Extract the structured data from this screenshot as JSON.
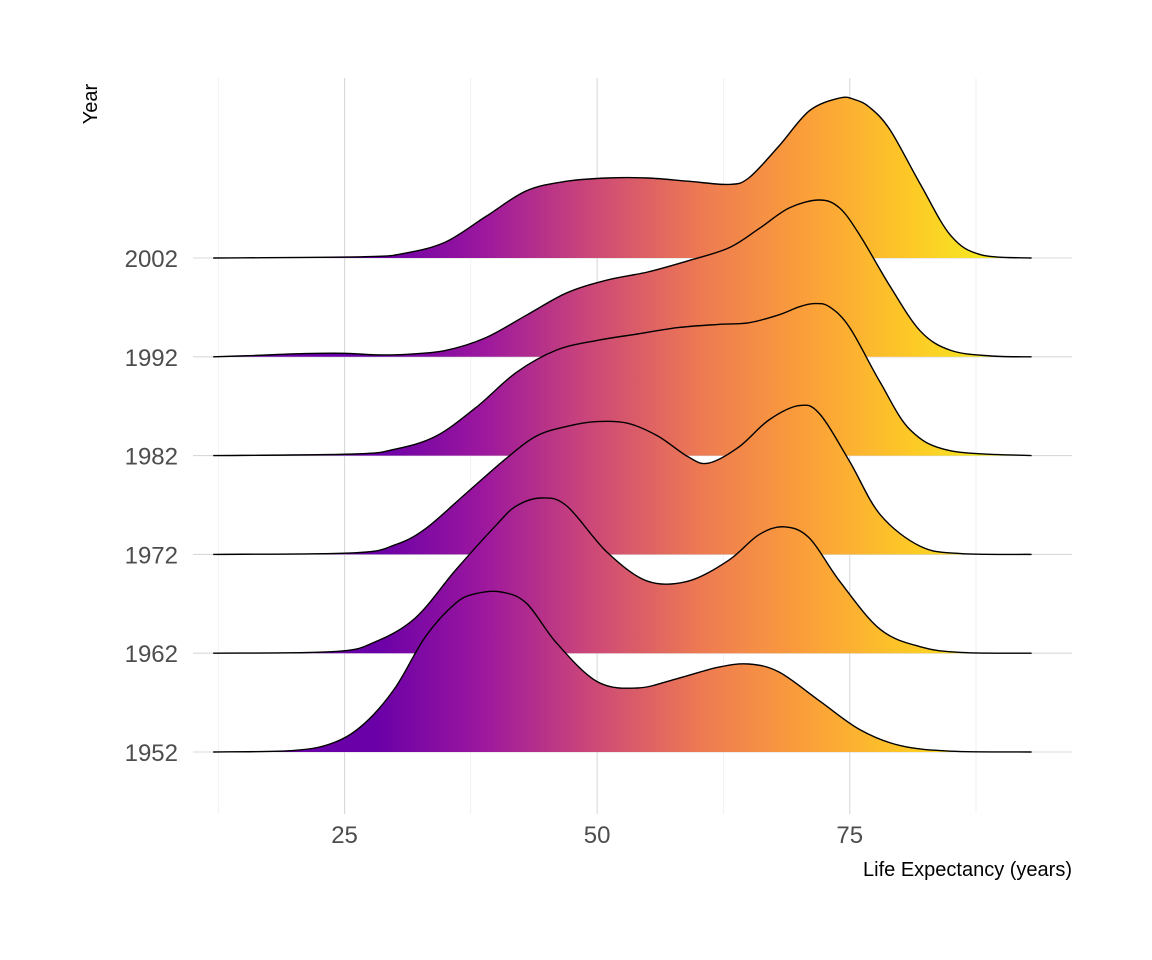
{
  "chart_data": {
    "type": "ridgeline",
    "xlabel": "Life Expectancy (years)",
    "ylabel": "Year",
    "xlim": [
      10,
      97
    ],
    "x_ticks": [
      25,
      50,
      75
    ],
    "x_minor_ticks": [
      12.5,
      37.5,
      62.5,
      87.5
    ],
    "grid": true,
    "fill": "gradient along x (plasma palette)",
    "colors": {
      "gradient_stops": [
        "#6a00a8",
        "#9c179e",
        "#cc4778",
        "#ed7953",
        "#fb9f3a",
        "#fdca26",
        "#f0f921"
      ],
      "outline": "#000000",
      "grid": "#d9d9d9"
    },
    "series": [
      {
        "name": "1952",
        "x": [
          12,
          20,
          24,
          27,
          30,
          33,
          36,
          38,
          40.5,
          43,
          46,
          50,
          54,
          58,
          62,
          65,
          68,
          72,
          76,
          80,
          85,
          93
        ],
        "density": [
          0,
          0.01,
          0.06,
          0.18,
          0.4,
          0.72,
          0.93,
          0.99,
          1.0,
          0.93,
          0.68,
          0.44,
          0.4,
          0.46,
          0.53,
          0.55,
          0.5,
          0.32,
          0.14,
          0.04,
          0.005,
          0
        ]
      },
      {
        "name": "1962",
        "x": [
          12,
          24,
          28,
          32,
          36,
          40,
          42,
          44.5,
          47,
          51,
          55,
          59,
          63,
          66,
          68.5,
          71,
          74,
          78,
          82,
          86,
          93
        ],
        "density": [
          0,
          0.01,
          0.07,
          0.22,
          0.52,
          0.8,
          0.92,
          0.97,
          0.92,
          0.63,
          0.45,
          0.45,
          0.58,
          0.74,
          0.79,
          0.72,
          0.45,
          0.15,
          0.04,
          0.005,
          0
        ]
      },
      {
        "name": "1972",
        "x": [
          12,
          26,
          30,
          33,
          37,
          41,
          44,
          47,
          50,
          53,
          56,
          59,
          61,
          64,
          67,
          70,
          72,
          75,
          78,
          82,
          86,
          93
        ],
        "density": [
          0,
          0.01,
          0.06,
          0.16,
          0.38,
          0.6,
          0.74,
          0.8,
          0.83,
          0.82,
          0.74,
          0.61,
          0.57,
          0.67,
          0.84,
          0.93,
          0.88,
          0.58,
          0.25,
          0.05,
          0.005,
          0
        ]
      },
      {
        "name": "1982",
        "x": [
          12,
          26,
          30,
          34,
          38,
          42,
          46,
          50,
          54,
          58,
          62,
          65,
          68,
          70,
          71.5,
          73,
          75,
          78,
          81,
          85,
          93
        ],
        "density": [
          0,
          0.01,
          0.04,
          0.12,
          0.3,
          0.52,
          0.66,
          0.72,
          0.76,
          0.8,
          0.82,
          0.83,
          0.88,
          0.93,
          0.95,
          0.93,
          0.8,
          0.46,
          0.16,
          0.03,
          0
        ]
      },
      {
        "name": "1992",
        "x": [
          12,
          16,
          21,
          25,
          28,
          31,
          35,
          39,
          43,
          47,
          51,
          55,
          59,
          63,
          66,
          69,
          72,
          74,
          76,
          79,
          82,
          85,
          89,
          93
        ],
        "density": [
          0,
          0.008,
          0.02,
          0.022,
          0.012,
          0.015,
          0.04,
          0.12,
          0.26,
          0.4,
          0.48,
          0.53,
          0.6,
          0.68,
          0.8,
          0.93,
          0.98,
          0.93,
          0.76,
          0.44,
          0.16,
          0.04,
          0.005,
          0
        ]
      },
      {
        "name": "2002",
        "x": [
          12,
          27,
          31,
          35,
          39,
          43,
          47,
          51,
          55,
          59,
          63,
          65,
          68,
          71,
          74,
          75.5,
          77,
          79,
          82,
          85,
          88,
          93
        ],
        "density": [
          0,
          0.008,
          0.03,
          0.1,
          0.26,
          0.42,
          0.48,
          0.5,
          0.5,
          0.48,
          0.46,
          0.5,
          0.7,
          0.92,
          1.0,
          0.99,
          0.94,
          0.8,
          0.46,
          0.14,
          0.02,
          0
        ]
      }
    ]
  }
}
